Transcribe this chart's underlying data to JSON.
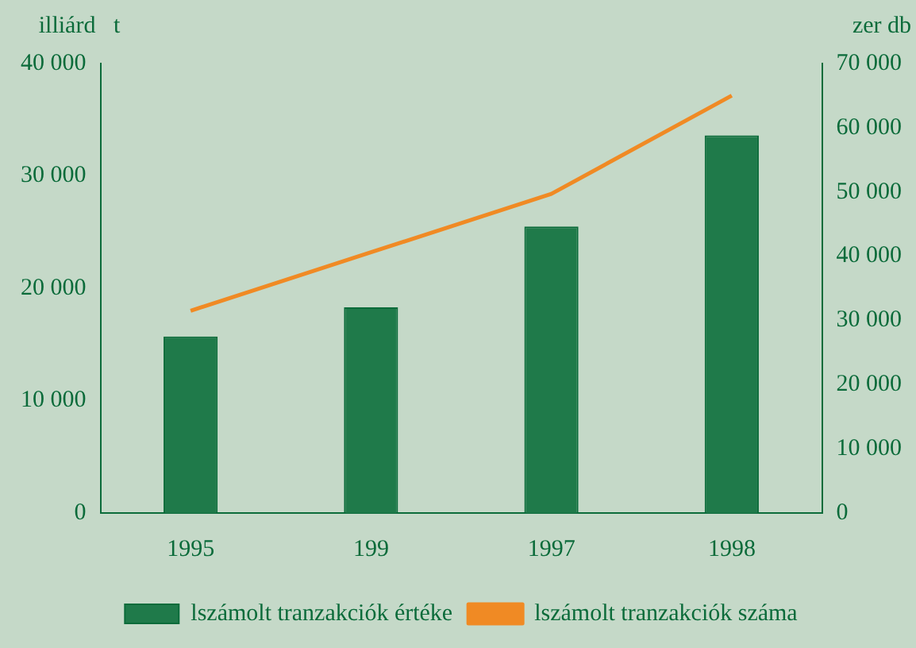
{
  "chart_data": {
    "type": "bar",
    "ylabel": "illiárd   t",
    "y2label": "zer db",
    "categories": [
      "1995",
      "199",
      "1997",
      "1998"
    ],
    "series": [
      {
        "name": "lszámolt tranzakciók értéke",
        "color": "#1f7a4a",
        "values": [
          15700,
          18300,
          25500,
          33600
        ]
      },
      {
        "name": "lszámolt tranzakciók száma",
        "type": "line",
        "axis": "y2",
        "color": "#f08a24",
        "values": [
          31500,
          40600,
          49700,
          65000
        ]
      }
    ],
    "ylim": [
      0,
      40000
    ],
    "yticks": [
      {
        "value": 0,
        "label": "0"
      },
      {
        "value": 10000,
        "label": "10 000"
      },
      {
        "value": 20000,
        "label": "20 000"
      },
      {
        "value": 30000,
        "label": "30 000"
      },
      {
        "value": 40000,
        "label": "40 000"
      }
    ],
    "y2lim": [
      0,
      70000
    ],
    "y2ticks": [
      {
        "value": 0,
        "label": "0"
      },
      {
        "value": 10000,
        "label": "10 000"
      },
      {
        "value": 20000,
        "label": "20 000"
      },
      {
        "value": 30000,
        "label": "30 000"
      },
      {
        "value": 40000,
        "label": "40 000"
      },
      {
        "value": 50000,
        "label": "50 000"
      },
      {
        "value": 60000,
        "label": "60 000"
      },
      {
        "value": 70000,
        "label": "70 000"
      }
    ],
    "grid": false,
    "legend": "bottom",
    "marker": "none"
  }
}
